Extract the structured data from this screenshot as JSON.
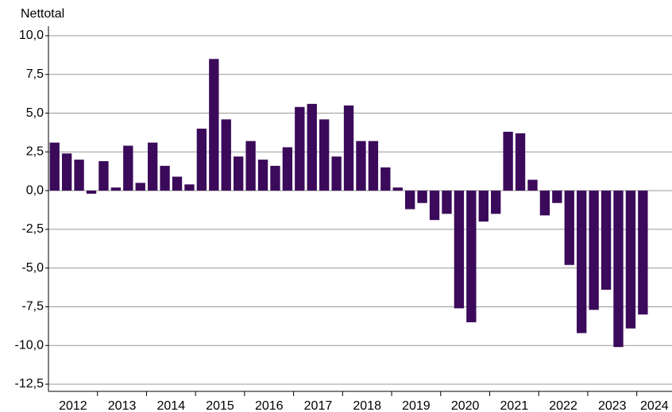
{
  "chart_data": {
    "type": "bar",
    "y_axis_title": "Nettotal",
    "categories": [
      "2012",
      null,
      null,
      null,
      "2013",
      null,
      null,
      null,
      "2014",
      null,
      null,
      null,
      "2015",
      null,
      null,
      null,
      "2016",
      null,
      null,
      null,
      "2017",
      null,
      null,
      null,
      "2018",
      null,
      null,
      null,
      "2019",
      null,
      null,
      null,
      "2020",
      null,
      null,
      null,
      "2021",
      null,
      null,
      null,
      "2022",
      null,
      null,
      null,
      "2023",
      null,
      null,
      null,
      "2024"
    ],
    "values": [
      3.1,
      2.4,
      2.0,
      -0.2,
      1.9,
      0.2,
      2.9,
      0.5,
      3.1,
      1.6,
      0.9,
      0.4,
      4.0,
      8.5,
      4.6,
      2.2,
      3.2,
      2.0,
      1.6,
      2.8,
      5.4,
      5.6,
      4.6,
      2.2,
      5.5,
      3.2,
      3.2,
      1.5,
      0.2,
      -1.2,
      -0.8,
      -1.9,
      -1.5,
      -7.6,
      -8.5,
      -2.0,
      -1.5,
      3.8,
      3.7,
      0.7,
      -1.6,
      -0.8,
      -4.8,
      -9.2,
      -7.7,
      -6.4,
      -10.1,
      -8.9,
      -8.0
    ],
    "color": "#3b0a5a",
    "ylim": [
      -12.5,
      10
    ],
    "yticks": [
      {
        "value": -12.5,
        "label": "-12,5"
      },
      {
        "value": -10,
        "label": "-10,0"
      },
      {
        "value": -7.5,
        "label": "-7,5"
      },
      {
        "value": -5,
        "label": "-5,0"
      },
      {
        "value": -2.5,
        "label": "-2,5"
      },
      {
        "value": 0,
        "label": "0,0"
      },
      {
        "value": 2.5,
        "label": "2,5"
      },
      {
        "value": 5,
        "label": "5,0"
      },
      {
        "value": 7.5,
        "label": "7,5"
      },
      {
        "value": 10,
        "label": "10,0"
      }
    ],
    "grid": true
  }
}
